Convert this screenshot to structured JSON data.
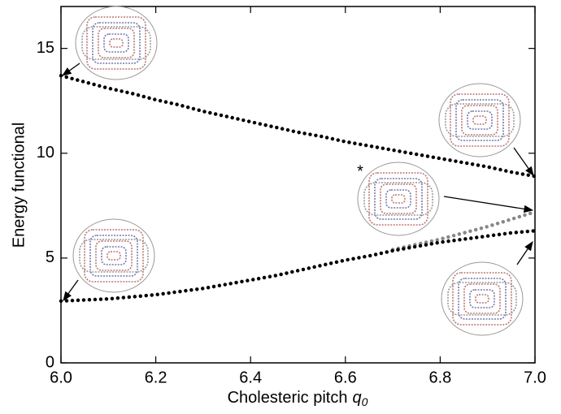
{
  "chart_data": {
    "type": "line",
    "xlabel": "Cholesteric pitch",
    "xlabel_symbol": "q",
    "xlabel_subscript": "0",
    "ylabel": "Energy functional",
    "annotation": "*",
    "x": [
      6.0,
      6.05,
      6.1,
      6.15,
      6.2,
      6.25,
      6.3,
      6.35,
      6.4,
      6.45,
      6.5,
      6.55,
      6.6,
      6.65,
      6.7,
      6.75,
      6.8,
      6.85,
      6.9,
      6.95,
      7.0
    ],
    "series": [
      {
        "color": "#888888",
        "values": [
          null,
          null,
          null,
          null,
          null,
          null,
          null,
          null,
          null,
          null,
          null,
          null,
          null,
          null,
          5.4,
          5.65,
          5.9,
          6.2,
          6.5,
          6.85,
          7.2
        ]
      },
      {
        "color": "#000000",
        "values": [
          13.7,
          13.4,
          13.1,
          12.85,
          12.55,
          12.3,
          12.0,
          11.75,
          11.5,
          11.25,
          11.0,
          10.8,
          10.55,
          10.35,
          10.15,
          9.95,
          9.75,
          9.55,
          9.35,
          9.1,
          8.9
        ]
      },
      {
        "color": "#000000",
        "values": [
          2.95,
          3.0,
          3.05,
          3.15,
          3.25,
          3.4,
          3.55,
          3.75,
          3.95,
          4.15,
          4.4,
          4.65,
          4.9,
          5.1,
          5.35,
          5.55,
          5.75,
          5.9,
          6.05,
          6.2,
          6.3
        ]
      }
    ],
    "xlim": [
      6.0,
      7.0
    ],
    "ylim": [
      0,
      17
    ],
    "xticks": [
      {
        "value": 6.0,
        "label": "6.0"
      },
      {
        "value": 6.2,
        "label": "6.2"
      },
      {
        "value": 6.4,
        "label": "6.4"
      },
      {
        "value": 6.6,
        "label": "6.6"
      },
      {
        "value": 6.8,
        "label": "6.8"
      },
      {
        "value": 7.0,
        "label": "7.0"
      }
    ],
    "yticks": [
      0,
      5,
      10,
      15
    ]
  }
}
